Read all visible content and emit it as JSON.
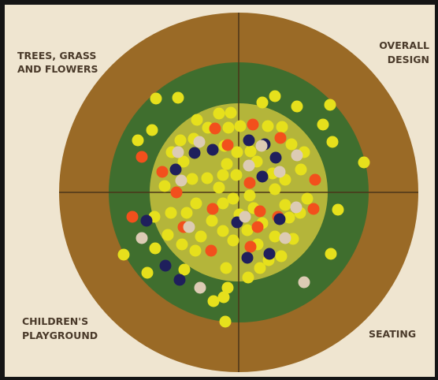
{
  "labels": {
    "top_left": [
      "TREES, GRASS",
      "AND FLOWERS"
    ],
    "top_right": [
      "OVERALL",
      "DESIGN"
    ],
    "bottom_left": [
      "CHILDREN'S",
      "PLAYGROUND"
    ],
    "bottom_right": [
      "SEATING"
    ]
  }
}
